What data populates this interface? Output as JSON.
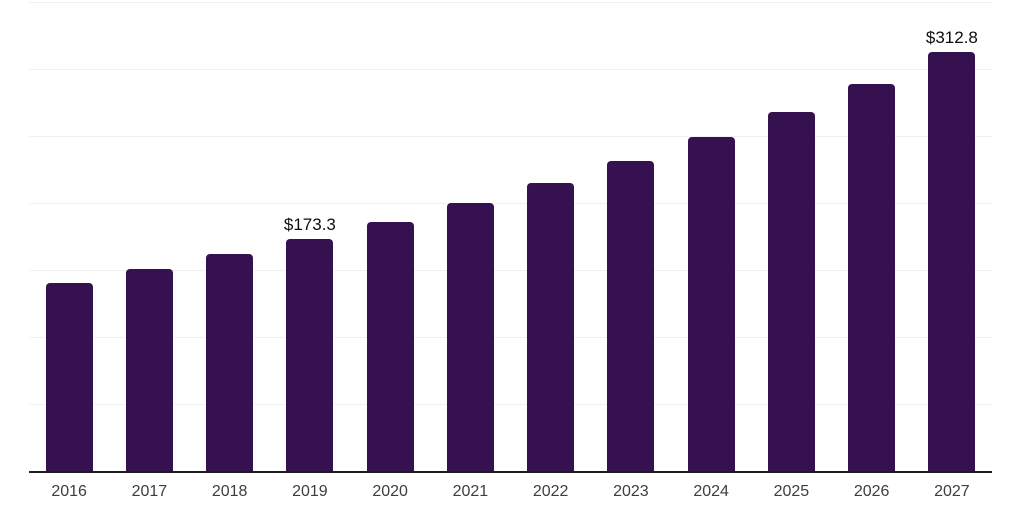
{
  "chart_data": {
    "type": "bar",
    "title": "",
    "xlabel": "",
    "ylabel": "",
    "categories": [
      "2016",
      "2017",
      "2018",
      "2019",
      "2020",
      "2021",
      "2022",
      "2023",
      "2024",
      "2025",
      "2026",
      "2027"
    ],
    "values": [
      140.3,
      150.9,
      161.8,
      173.3,
      185.8,
      200.0,
      214.8,
      231.2,
      249.0,
      268.2,
      289.0,
      312.8
    ],
    "data_labels": [
      {
        "category": "2019",
        "text": "$173.3"
      },
      {
        "category": "2027",
        "text": "$312.8"
      }
    ],
    "ylim": [
      0,
      350
    ],
    "grid_ticks": [
      50,
      100,
      150,
      200,
      250,
      300,
      350
    ],
    "grid": "horizontal-only",
    "legend": "none",
    "y_axis_labels_visible": false,
    "colors": {
      "bar": "#36114F",
      "axis_line": "#1C1C1C",
      "gridline": "#F0F0F3",
      "tick_label": "#3D3D3D",
      "data_label": "#0D0D0D",
      "background": "#FFFFFF"
    }
  }
}
